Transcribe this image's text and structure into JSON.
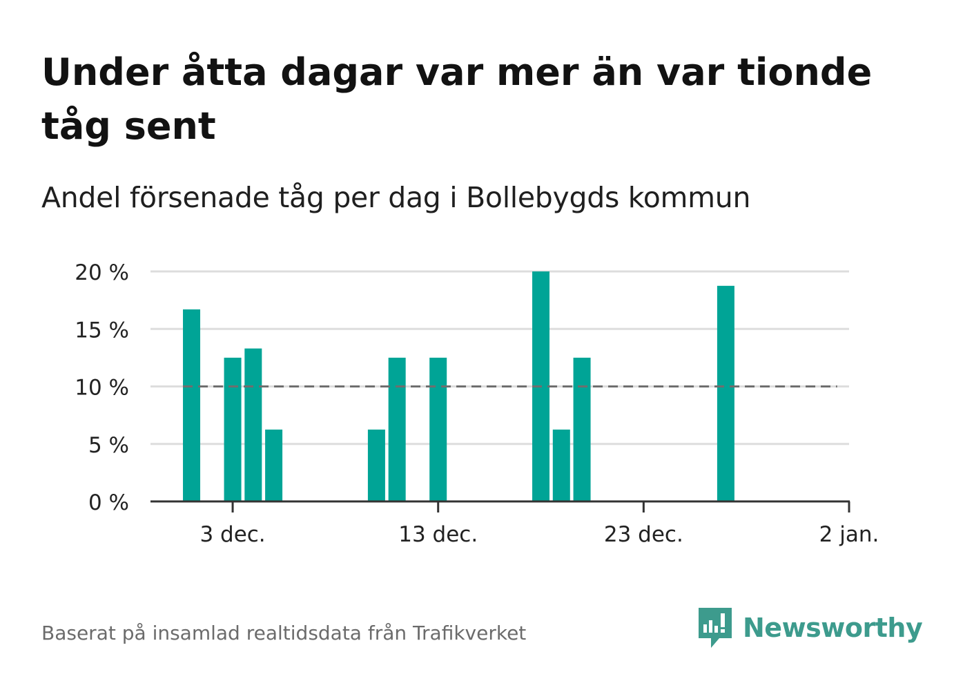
{
  "header": {
    "title": "Under åtta dagar var mer än var tionde tåg sent",
    "subtitle": "Andel försenade tåg per dag i Bollebygds kommun"
  },
  "footer": {
    "source": "Baserat på insamlad realtidsdata från Trafikverket",
    "brand": "Newsworthy",
    "brand_icon": "newsworthy-logo-icon"
  },
  "colors": {
    "bar": "#00a496",
    "reference_line": "#6e6e6e",
    "grid": "#dddddd",
    "axis": "#333333",
    "brand": "#3d9b8d"
  },
  "chart_data": {
    "type": "bar",
    "x_axis": {
      "type": "date",
      "range": [
        "2023-11-29",
        "2024-01-02"
      ],
      "ticks": [
        {
          "date": "2023-12-03",
          "label": "3 dec."
        },
        {
          "date": "2023-12-13",
          "label": "13 dec."
        },
        {
          "date": "2023-12-23",
          "label": "23 dec."
        },
        {
          "date": "2024-01-02",
          "label": "2 jan."
        }
      ]
    },
    "y_axis": {
      "range": [
        0,
        20
      ],
      "ticks": [
        0,
        5,
        10,
        15,
        20
      ],
      "tick_labels": [
        "0 %",
        "5 %",
        "10 %",
        "15 %",
        "20 %"
      ],
      "grid": true
    },
    "values": [
      {
        "date": "2023-12-01",
        "value": 16.7
      },
      {
        "date": "2023-12-03",
        "value": 12.5
      },
      {
        "date": "2023-12-04",
        "value": 13.3
      },
      {
        "date": "2023-12-05",
        "value": 6.25
      },
      {
        "date": "2023-12-10",
        "value": 6.25
      },
      {
        "date": "2023-12-11",
        "value": 12.5
      },
      {
        "date": "2023-12-13",
        "value": 12.5
      },
      {
        "date": "2023-12-18",
        "value": 20
      },
      {
        "date": "2023-12-19",
        "value": 6.25
      },
      {
        "date": "2023-12-20",
        "value": 12.5
      },
      {
        "date": "2023-12-27",
        "value": 18.75
      }
    ],
    "reference_line": {
      "value": 10,
      "style": "dashed",
      "from": "2023-12-01",
      "to": "2024-01-01"
    }
  }
}
